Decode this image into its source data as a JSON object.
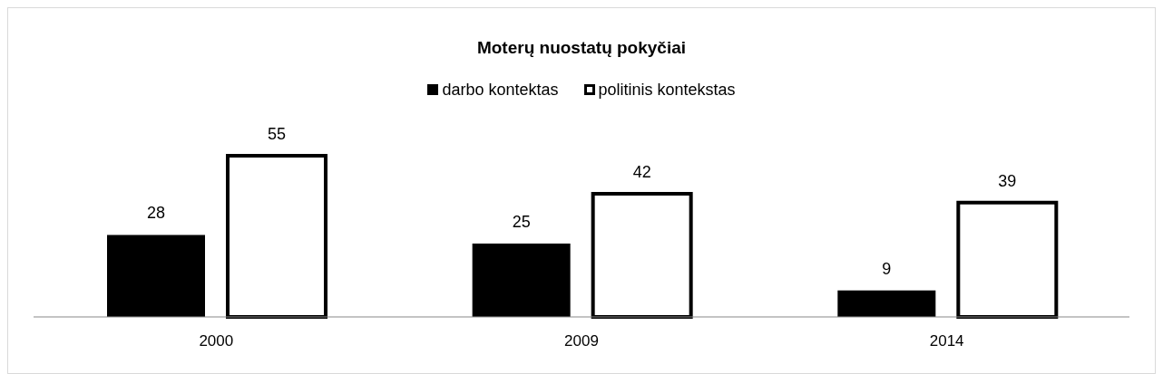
{
  "chart_data": {
    "type": "bar",
    "title": "Moterų nuostatų pokyčiai",
    "categories": [
      "2000",
      "2009",
      "2014"
    ],
    "series": [
      {
        "name": "darbo kontektas",
        "color": "#000000",
        "values": [
          28,
          25,
          9
        ]
      },
      {
        "name": "politinis kontekstas",
        "color": "#ffffff",
        "values": [
          55,
          42,
          39
        ]
      }
    ],
    "data_labels": true,
    "legend": "top",
    "grid": false
  }
}
